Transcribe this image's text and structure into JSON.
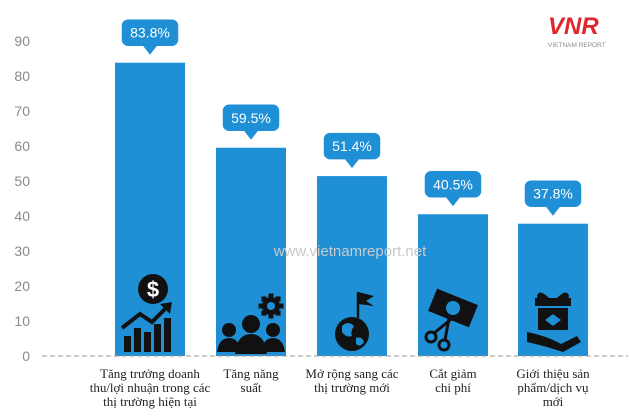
{
  "brand": {
    "logo_text": "VNR",
    "tagline": "VIETNAM REPORT",
    "red": "#e0262d",
    "gray": "#8c8c8c"
  },
  "watermark": "www.vietnamreport.net",
  "colors": {
    "bar": "#1f8fd6",
    "callout": "#1f8fd6",
    "axis": "#9a9a9a",
    "icon": "#111111"
  },
  "chart_data": {
    "type": "bar",
    "categories": [
      [
        "Tăng trưởng doanh",
        "thu/lợi nhuận trong các",
        "thị trường hiện tại"
      ],
      [
        "Tăng năng",
        "suất"
      ],
      [
        "Mở rộng sang các",
        "thị trường mới"
      ],
      [
        "Cắt giảm",
        "chi phí"
      ],
      [
        "Giới thiệu sản",
        "phẩm/dịch vụ",
        "mới"
      ]
    ],
    "values": [
      83.8,
      59.5,
      51.4,
      40.5,
      37.8
    ],
    "data_labels": [
      "83.8%",
      "59.5%",
      "51.4%",
      "40.5%",
      "37.8%"
    ],
    "ylim": [
      0,
      90
    ],
    "yticks": [
      "0",
      "10",
      "20",
      "30",
      "40",
      "50",
      "60",
      "70",
      "80",
      "90"
    ],
    "icons": [
      "dollar-growth-icon",
      "team-gear-icon",
      "globe-flag-icon",
      "scissors-cash-icon",
      "gift-hand-icon"
    ]
  }
}
